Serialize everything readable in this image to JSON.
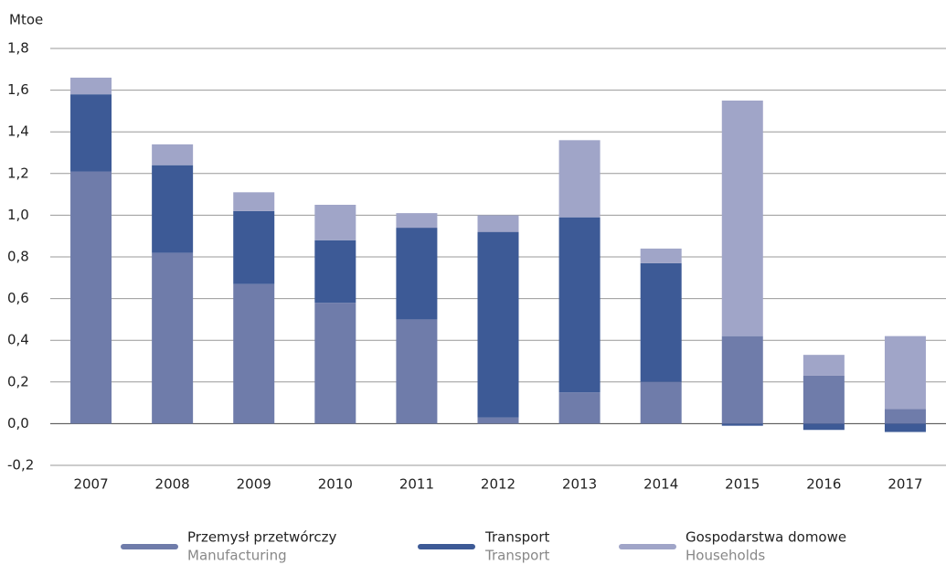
{
  "chart_data": {
    "type": "stacked-bar",
    "y_label": "Mtoe",
    "categories": [
      "2007",
      "2008",
      "2009",
      "2010",
      "2011",
      "2012",
      "2013",
      "2014",
      "2015",
      "2016",
      "2017"
    ],
    "series": [
      {
        "name": "Przemysł przetwórczy",
        "name_en": "Manufacturing",
        "color": "#6f7caa",
        "values": [
          1.21,
          0.82,
          0.67,
          0.58,
          0.5,
          0.03,
          0.15,
          0.2,
          0.42,
          0.23,
          0.07
        ]
      },
      {
        "name": "Transport",
        "name_en": "Transport",
        "color": "#3d5a96",
        "values": [
          0.37,
          0.42,
          0.35,
          0.3,
          0.44,
          0.89,
          0.84,
          0.57,
          -0.01,
          -0.03,
          -0.04
        ]
      },
      {
        "name": "Gospodarstwa domowe",
        "name_en": "Households",
        "color": "#a0a5c8",
        "values": [
          0.08,
          0.1,
          0.09,
          0.17,
          0.07,
          0.08,
          0.37,
          0.07,
          1.13,
          0.1,
          0.35
        ]
      }
    ],
    "ylim": [
      -0.2,
      1.8
    ],
    "yticks": [
      {
        "value": -0.2,
        "label": "-0,2"
      },
      {
        "value": 0,
        "label": "0,0"
      },
      {
        "value": 0.2,
        "label": "0,2"
      },
      {
        "value": 0.4,
        "label": "0,4"
      },
      {
        "value": 0.6,
        "label": "0,6"
      },
      {
        "value": 0.8,
        "label": "0,8"
      },
      {
        "value": 1.0,
        "label": "1,0"
      },
      {
        "value": 1.2,
        "label": "1,2"
      },
      {
        "value": 1.4,
        "label": "1,4"
      },
      {
        "value": 1.6,
        "label": "1,6"
      },
      {
        "value": 1.8,
        "label": "1,8"
      }
    ],
    "grid": true
  }
}
